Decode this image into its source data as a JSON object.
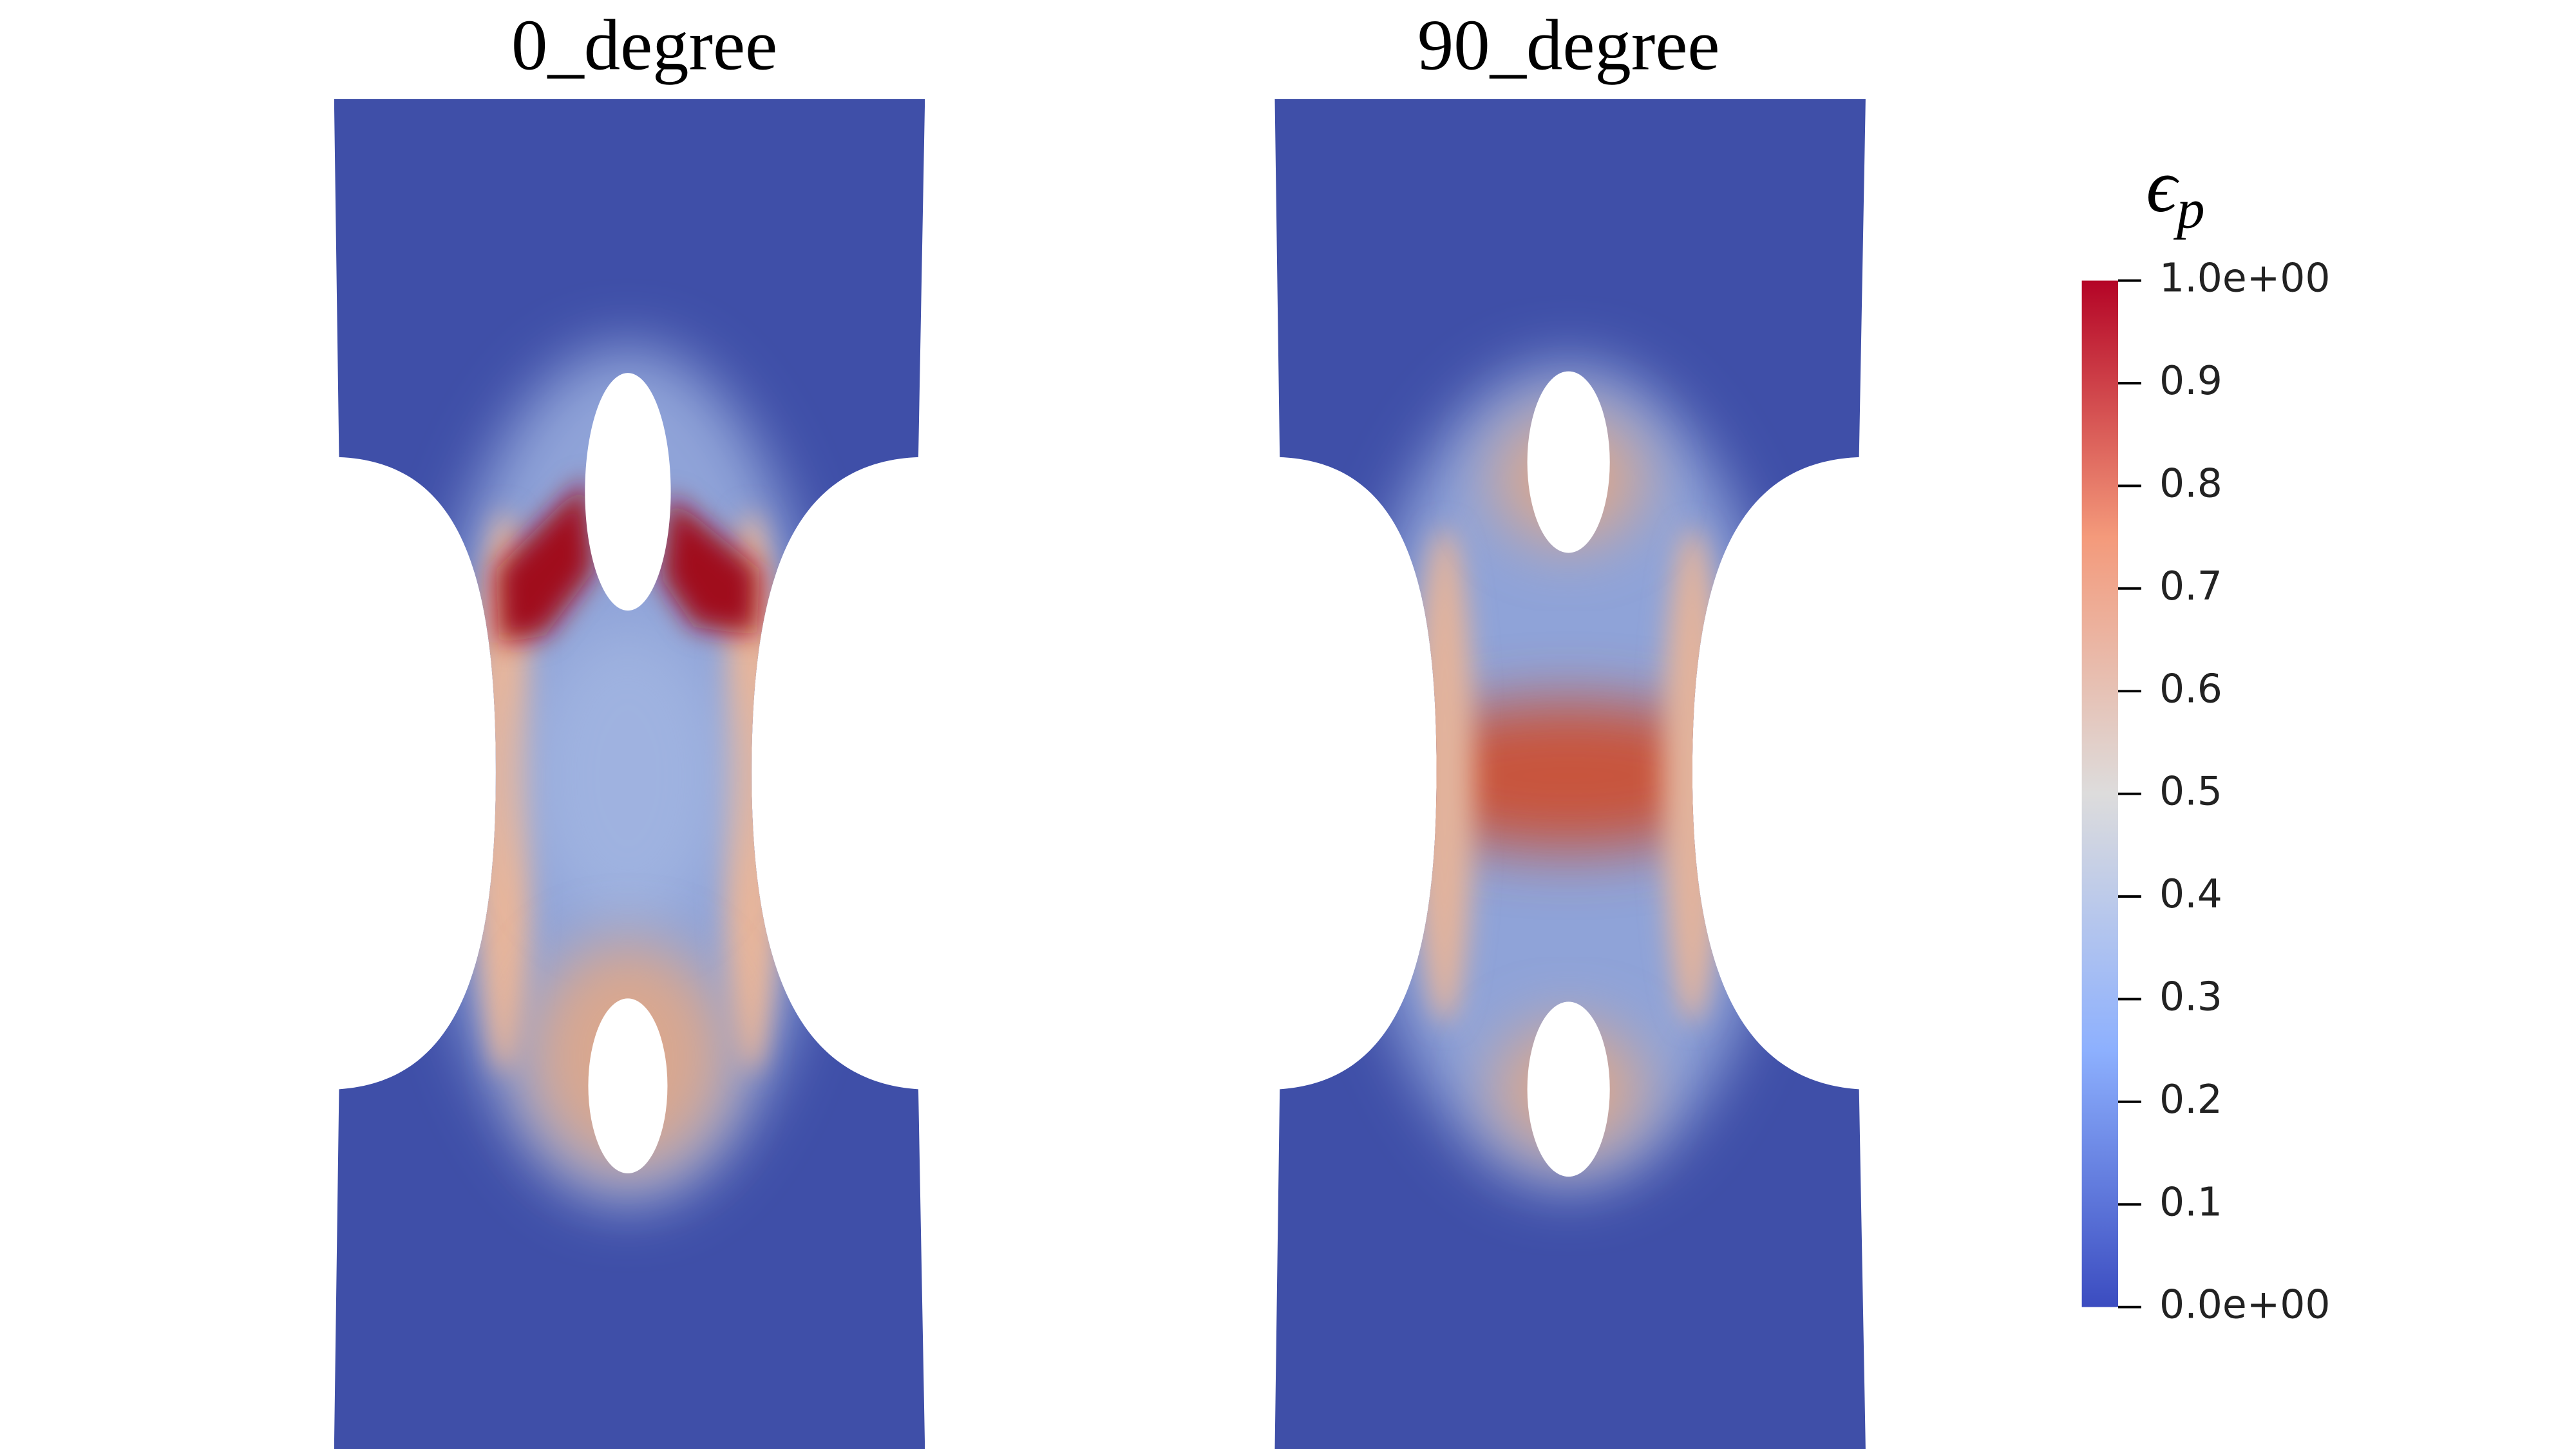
{
  "panels": [
    {
      "title": "0_degree"
    },
    {
      "title": "90_degree"
    }
  ],
  "colorbar": {
    "symbol": "ϵ",
    "subscript": "p",
    "range": [
      0,
      1
    ],
    "ticks": [
      {
        "value": 0,
        "label": "0.0e+00"
      },
      0.1,
      0.2,
      0.3,
      0.4,
      0.5,
      0.6,
      0.7,
      0.8,
      0.9,
      {
        "value": 1,
        "label": "1.0e+00"
      }
    ]
  }
}
